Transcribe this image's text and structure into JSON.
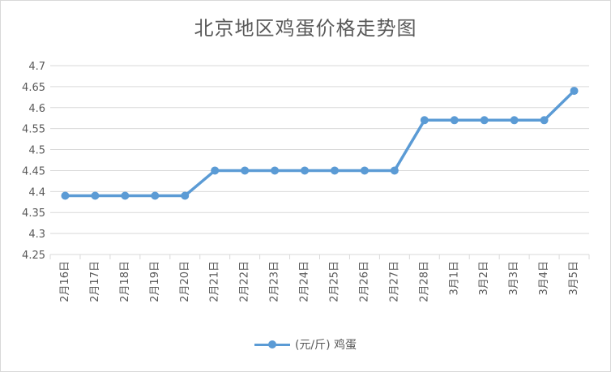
{
  "chart_data": {
    "type": "line",
    "title": "北京地区鸡蛋价格走势图",
    "categories": [
      "2月16日",
      "2月17日",
      "2月18日",
      "2月19日",
      "2月20日",
      "2月21日",
      "2月22日",
      "2月23日",
      "2月24日",
      "2月25日",
      "2月26日",
      "2月27日",
      "2月28日",
      "3月1日",
      "3月2日",
      "3月3日",
      "3月4日",
      "3月5日"
    ],
    "series": [
      {
        "name": "(元/斤) 鸡蛋",
        "values": [
          4.39,
          4.39,
          4.39,
          4.39,
          4.39,
          4.45,
          4.45,
          4.45,
          4.45,
          4.45,
          4.45,
          4.45,
          4.57,
          4.57,
          4.57,
          4.57,
          4.57,
          4.64
        ]
      }
    ],
    "ylim": [
      4.25,
      4.7
    ],
    "yticks": [
      "4.25",
      "4.3",
      "4.35",
      "4.4",
      "4.45",
      "4.5",
      "4.55",
      "4.6",
      "4.65",
      "4.7"
    ],
    "grid": true,
    "legend": "bottom",
    "colors": {
      "series": "#5b9bd5",
      "grid": "#d9d9d9",
      "text": "#595959"
    }
  }
}
